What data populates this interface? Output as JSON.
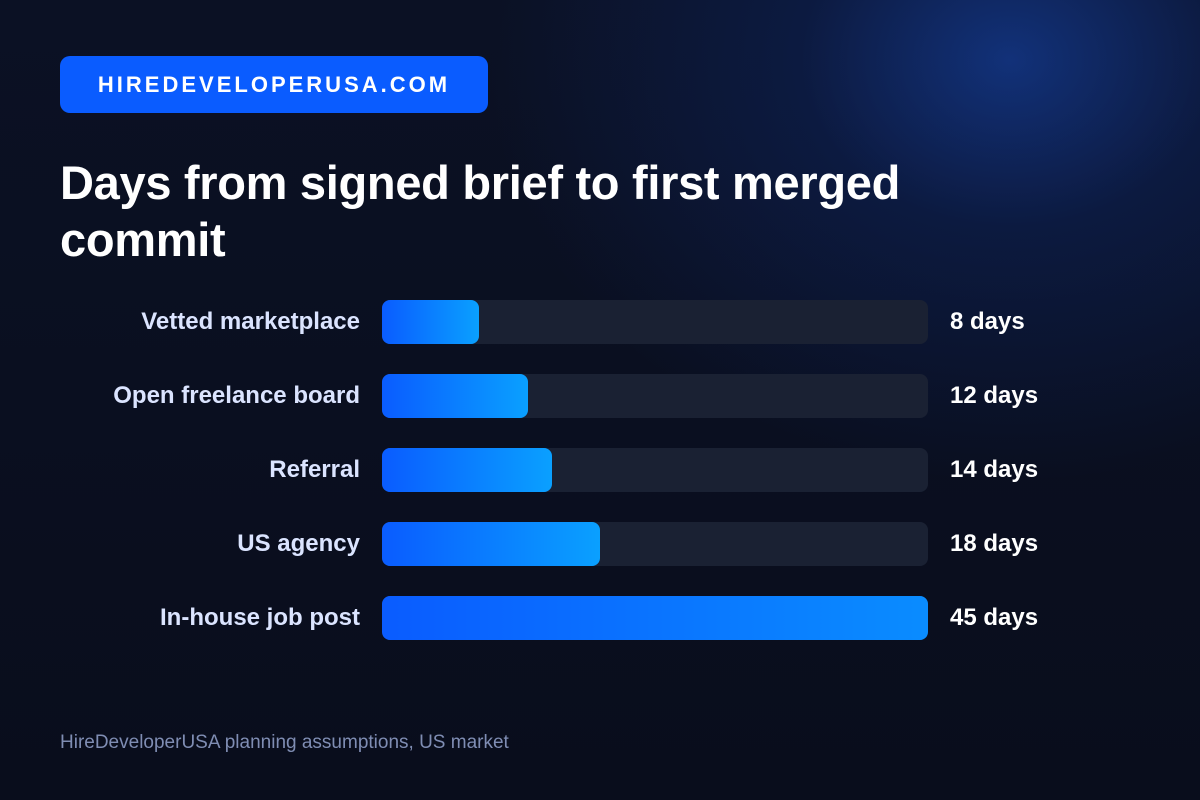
{
  "badge": {
    "text": "HIREDEVELOPERUSA.COM"
  },
  "chart_data": {
    "type": "bar",
    "orientation": "horizontal",
    "title": "Days from signed brief to first merged commit",
    "categories": [
      "Vetted marketplace",
      "Open freelance board",
      "Referral",
      "US agency",
      "In-house job post"
    ],
    "values": [
      8,
      12,
      14,
      18,
      45
    ],
    "value_labels": [
      "8 days",
      "12 days",
      "14 days",
      "18 days",
      "45 days"
    ],
    "xlim": [
      0,
      45
    ],
    "grid": false,
    "legend": "none",
    "colors": {
      "bar_start": "#0a5cff",
      "bar_end": "#0aa0ff",
      "track": "#1a2133"
    }
  },
  "footer": {
    "source": "HireDeveloperUSA planning assumptions, US market"
  },
  "colors": {
    "background": "#0a0f20",
    "accent": "#0a5cff",
    "label": "#dbe4ff",
    "muted": "#7f8db3"
  }
}
